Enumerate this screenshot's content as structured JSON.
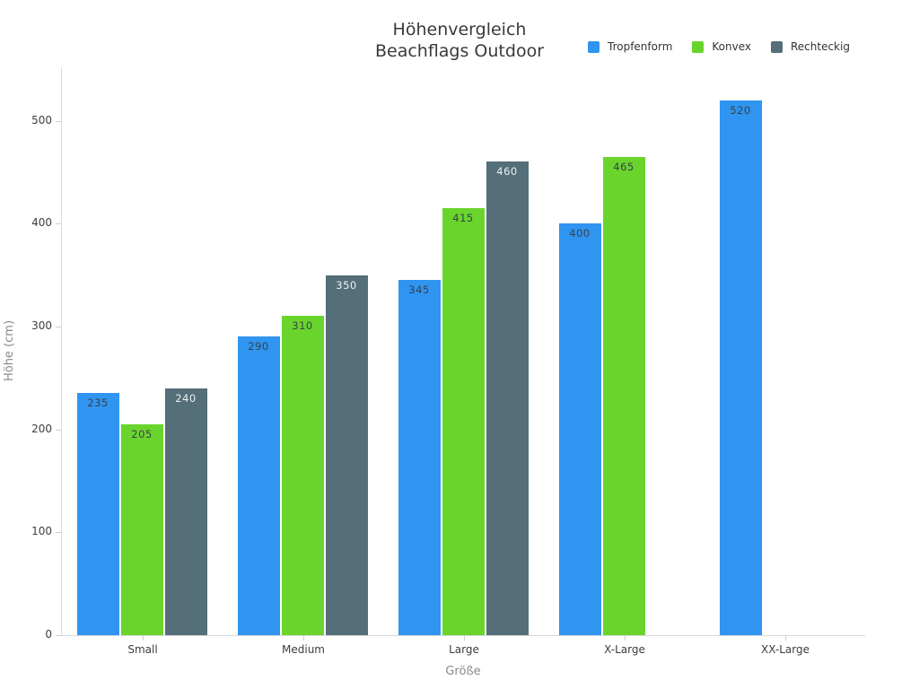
{
  "title": {
    "line1": "Höhenvergleich",
    "line2": "Beachflags Outdoor"
  },
  "legend": {
    "position": "top-right",
    "items": [
      {
        "label": "Tropfenform",
        "color": "#3094f1"
      },
      {
        "label": "Konvex",
        "color": "#69d52c"
      },
      {
        "label": "Rechteckig",
        "color": "#546e7a"
      }
    ]
  },
  "chart_data": {
    "type": "bar",
    "title": "Höhenvergleich Beachflags Outdoor",
    "xlabel": "Größe",
    "ylabel": "Höhe (cm)",
    "categories": [
      "Small",
      "Medium",
      "Large",
      "X-Large",
      "XX-Large"
    ],
    "series": [
      {
        "name": "Tropfenform",
        "color": "#3094f1",
        "label_color": "#37424a",
        "values": [
          235,
          290,
          345,
          400,
          520
        ]
      },
      {
        "name": "Konvex",
        "color": "#69d52c",
        "label_color": "#37424a",
        "values": [
          205,
          310,
          415,
          465,
          null
        ]
      },
      {
        "name": "Rechteckig",
        "color": "#546e7a",
        "label_color": "#eef2f4",
        "values": [
          240,
          350,
          460,
          null,
          null
        ]
      }
    ],
    "ylim": [
      0,
      552
    ],
    "yticks": [
      0,
      100,
      200,
      300,
      400,
      500
    ],
    "grid": false,
    "background": "#ffffff",
    "legend_position": "top-right"
  }
}
